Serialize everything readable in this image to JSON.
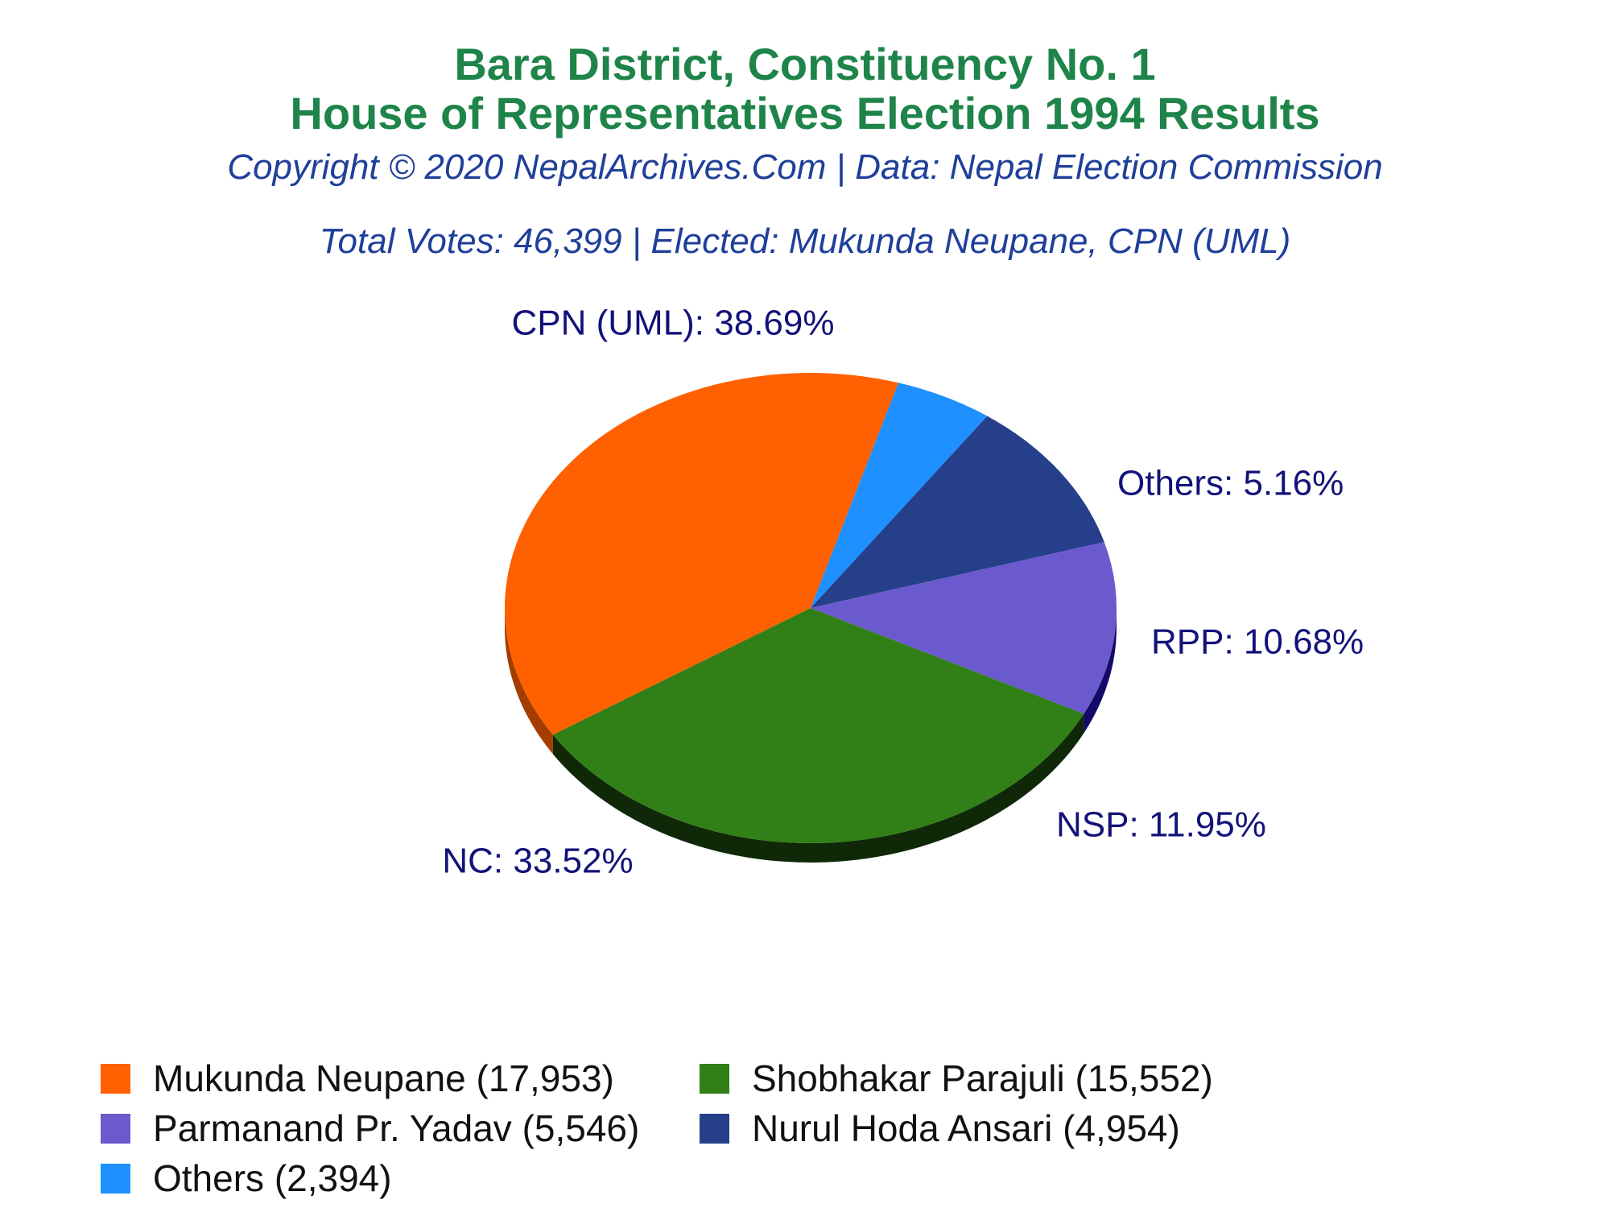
{
  "title_line1": "Bara District, Constituency No. 1",
  "title_line2": "House of Representatives Election 1994 Results",
  "copyright": "Copyright © 2020 NepalArchives.Com | Data: Nepal Election Commission",
  "summary": "Total Votes: 46,399 | Elected: Mukunda Neupane, CPN (UML)",
  "chart_data": {
    "type": "pie",
    "slices": [
      {
        "label": "CPN (UML): 38.69%",
        "party": "CPN (UML)",
        "percent": 38.69,
        "votes": 17953,
        "color": "#ff6000",
        "side": "#a33d00"
      },
      {
        "label": "Others: 5.16%",
        "party": "Others",
        "percent": 5.16,
        "votes": 2394,
        "color": "#1e90ff",
        "side": "#0d4d99"
      },
      {
        "label": "RPP: 10.68%",
        "party": "RPP",
        "percent": 10.68,
        "votes": 4954,
        "color": "#253f8b",
        "side": "#0f1d4a"
      },
      {
        "label": "NSP: 11.95%",
        "party": "NSP",
        "percent": 11.95,
        "votes": 5546,
        "color": "#6a5acd",
        "side": "#120a66"
      },
      {
        "label": "NC: 33.52%",
        "party": "NC",
        "percent": 33.52,
        "votes": 15552,
        "color": "#318017",
        "side": "#0e2808"
      }
    ],
    "legend": [
      {
        "text": "Mukunda Neupane (17,953)",
        "color": "#ff6000"
      },
      {
        "text": "Shobhakar Parajuli (15,552)",
        "color": "#318017"
      },
      {
        "text": "Parmanand Pr. Yadav (5,546)",
        "color": "#6a5acd"
      },
      {
        "text": "Nurul Hoda Ansari (4,954)",
        "color": "#253f8b"
      },
      {
        "text": "Others (2,394)",
        "color": "#1e90ff"
      }
    ]
  }
}
